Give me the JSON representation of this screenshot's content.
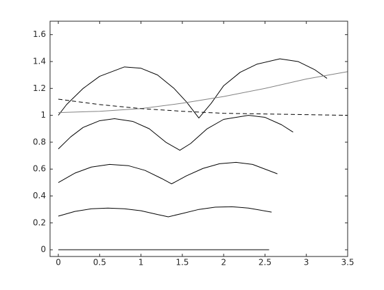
{
  "chart_data": {
    "type": "line",
    "xlim": [
      -0.1,
      3.5
    ],
    "ylim": [
      -0.05,
      1.7
    ],
    "xticks": [
      0,
      0.5,
      1,
      1.5,
      2,
      2.5,
      3,
      3.5
    ],
    "yticks": [
      0,
      0.2,
      0.4,
      0.6,
      0.8,
      1,
      1.2,
      1.4,
      1.6
    ],
    "grid": false,
    "series": [
      {
        "color": "#000000",
        "linestyle": "solid",
        "x": [
          0,
          2.55
        ],
        "values": [
          0,
          0
        ]
      },
      {
        "color": "#000000",
        "linestyle": "solid",
        "x": [
          0,
          0.2,
          0.4,
          0.6,
          0.8,
          1.0,
          1.2,
          1.33,
          1.5,
          1.7,
          1.9,
          2.1,
          2.3,
          2.58
        ],
        "values": [
          0.25,
          0.285,
          0.305,
          0.31,
          0.305,
          0.29,
          0.262,
          0.245,
          0.27,
          0.3,
          0.317,
          0.32,
          0.31,
          0.28
        ]
      },
      {
        "color": "#000000",
        "linestyle": "solid",
        "x": [
          0,
          0.2,
          0.4,
          0.62,
          0.85,
          1.05,
          1.25,
          1.37,
          1.55,
          1.75,
          1.95,
          2.15,
          2.35,
          2.65
        ],
        "values": [
          0.5,
          0.57,
          0.615,
          0.635,
          0.625,
          0.59,
          0.53,
          0.49,
          0.55,
          0.605,
          0.64,
          0.65,
          0.635,
          0.565
        ]
      },
      {
        "color": "#000000",
        "linestyle": "solid",
        "x": [
          0,
          0.15,
          0.3,
          0.5,
          0.68,
          0.9,
          1.1,
          1.3,
          1.47,
          1.6,
          1.8,
          2.0,
          2.3,
          2.5,
          2.7,
          2.84
        ],
        "values": [
          0.75,
          0.84,
          0.91,
          0.96,
          0.975,
          0.955,
          0.9,
          0.8,
          0.74,
          0.79,
          0.9,
          0.97,
          1.0,
          0.985,
          0.93,
          0.875
        ]
      },
      {
        "color": "#000000",
        "linestyle": "solid",
        "x": [
          0,
          0.1,
          0.3,
          0.5,
          0.8,
          1.0,
          1.2,
          1.4,
          1.55,
          1.7,
          1.85,
          2.0,
          2.2,
          2.4,
          2.68,
          2.9,
          3.1,
          3.25
        ],
        "values": [
          1.0,
          1.08,
          1.2,
          1.29,
          1.36,
          1.35,
          1.3,
          1.2,
          1.1,
          0.98,
          1.09,
          1.22,
          1.32,
          1.38,
          1.42,
          1.4,
          1.34,
          1.275
        ]
      },
      {
        "color": "#808080",
        "linestyle": "solid",
        "x": [
          0,
          0.5,
          1,
          1.5,
          2,
          2.5,
          3,
          3.5
        ],
        "values": [
          1.02,
          1.03,
          1.05,
          1.09,
          1.14,
          1.2,
          1.27,
          1.325
        ]
      },
      {
        "color": "#000000",
        "linestyle": "dashed",
        "x": [
          0,
          0.5,
          1,
          1.5,
          2,
          2.5,
          3,
          3.5
        ],
        "values": [
          1.12,
          1.08,
          1.05,
          1.03,
          1.015,
          1.01,
          1.005,
          1.0
        ]
      }
    ]
  }
}
